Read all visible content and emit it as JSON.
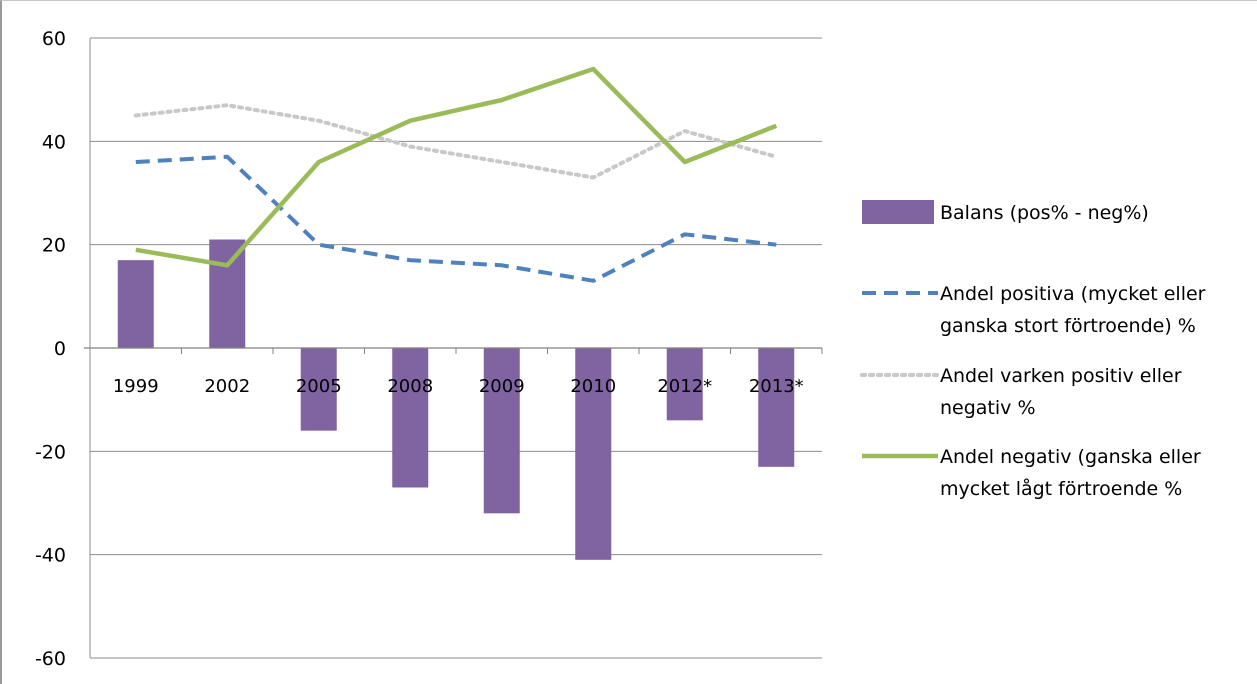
{
  "chart_data": {
    "type": "bar+line",
    "categories": [
      "1999",
      "2002",
      "2005",
      "2008",
      "2009",
      "2010",
      "2012*",
      "2013*"
    ],
    "ylim": [
      -60,
      60
    ],
    "yticks": [
      "60",
      "40",
      "20",
      "0",
      "-20",
      "-40",
      "-60"
    ],
    "ytick_values": [
      60,
      40,
      20,
      0,
      -20,
      -40,
      -60
    ],
    "grid": true,
    "legend_position": "right",
    "series": [
      {
        "name": "Balans (pos% - neg%)",
        "kind": "bar",
        "color": "#8064a2",
        "values": [
          17,
          21,
          -16,
          -27,
          -32,
          -41,
          -14,
          -23
        ]
      },
      {
        "name": "Andel positiva (mycket eller ganska stort förtroende) %",
        "kind": "line",
        "style": "dashed",
        "color": "#4f81bd",
        "values": [
          36,
          37,
          20,
          17,
          16,
          13,
          22,
          20
        ]
      },
      {
        "name": "Andel varken positiv eller negativ %",
        "kind": "line",
        "style": "dotted",
        "color": "#c8c8c8",
        "values": [
          45,
          47,
          44,
          39,
          36,
          33,
          42,
          37
        ]
      },
      {
        "name": "Andel negativ (ganska eller mycket lågt förtroende %",
        "kind": "line",
        "style": "solid",
        "color": "#9bbb59",
        "values": [
          19,
          16,
          36,
          44,
          48,
          54,
          36,
          43
        ]
      }
    ]
  },
  "legend": {
    "items": [
      {
        "lines": [
          "Balans (pos% - neg%)"
        ]
      },
      {
        "lines": [
          "Andel positiva (mycket eller",
          "ganska stort förtroende) %"
        ]
      },
      {
        "lines": [
          "Andel varken positiv eller",
          "negativ %"
        ]
      },
      {
        "lines": [
          "Andel negativ (ganska eller",
          "mycket lågt förtroende %"
        ]
      }
    ]
  }
}
